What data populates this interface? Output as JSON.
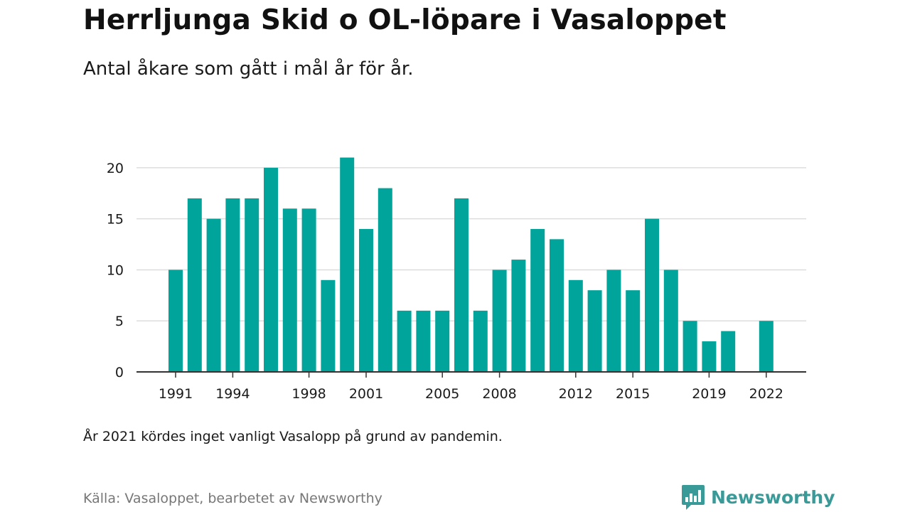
{
  "header": {
    "title": "Herrljunga Skid o OL-löpare i Vasaloppet",
    "subtitle": "Antal åkare som gått i mål år för år."
  },
  "footer": {
    "note": "År 2021 kördes inget vanligt Vasalopp på grund av pandemin.",
    "source": "Källa: Vasaloppet, bearbetet av Newsworthy",
    "brand": "Newsworthy",
    "brand_icon": "newsworthy-logo-icon"
  },
  "colors": {
    "bar": "#00a49a",
    "grid": "#dddddd",
    "axis": "#333333",
    "brand": "#3a9a98"
  },
  "chart_data": {
    "type": "bar",
    "title": "Herrljunga Skid o OL-löpare i Vasaloppet",
    "subtitle": "Antal åkare som gått i mål år för år.",
    "xlabel": "",
    "ylabel": "",
    "x": [
      1991,
      1992,
      1993,
      1994,
      1995,
      1996,
      1997,
      1998,
      1999,
      2000,
      2001,
      2002,
      2003,
      2004,
      2005,
      2006,
      2007,
      2008,
      2009,
      2010,
      2011,
      2012,
      2013,
      2014,
      2015,
      2016,
      2017,
      2018,
      2019,
      2020,
      2021,
      2022
    ],
    "values": [
      10,
      17,
      15,
      17,
      17,
      20,
      16,
      16,
      9,
      21,
      14,
      18,
      6,
      6,
      6,
      17,
      6,
      10,
      11,
      14,
      13,
      9,
      8,
      10,
      8,
      15,
      10,
      5,
      3,
      4,
      null,
      5
    ],
    "xticks": [
      1991,
      1994,
      1998,
      2001,
      2005,
      2008,
      2012,
      2015,
      2019,
      2022
    ],
    "yticks": [
      0,
      5,
      10,
      15,
      20
    ],
    "ylim": [
      0,
      22.5
    ],
    "grid": true,
    "legend": false
  }
}
